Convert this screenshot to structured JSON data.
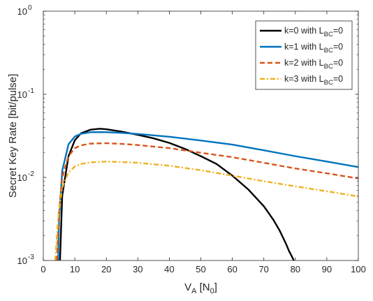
{
  "chart_data": {
    "type": "line",
    "xlabel": {
      "main": "V",
      "sub": "A",
      "rest": " [N",
      "sub2": "0",
      "end": "]"
    },
    "ylabel": "Secret Key Rate [bit/pulse]",
    "xlim": [
      0,
      100
    ],
    "ylim": [
      0.001,
      1
    ],
    "yscale": "log",
    "grid": false,
    "legend_position": "top-right",
    "x_ticks": [
      0,
      10,
      20,
      30,
      40,
      50,
      60,
      70,
      80,
      90,
      100
    ],
    "y_ticks": [
      {
        "value": 1,
        "base": "10",
        "exp": "0"
      },
      {
        "value": 0.1,
        "base": "10",
        "exp": "-1"
      },
      {
        "value": 0.01,
        "base": "10",
        "exp": "-2"
      },
      {
        "value": 0.001,
        "base": "10",
        "exp": "-3"
      }
    ],
    "series": [
      {
        "name": "k=0 with L_BC=0",
        "legend": {
          "pre": "k=0 with L",
          "sub": "BC",
          "post": "=0"
        },
        "color": "#000000",
        "dash": "solid",
        "x": [
          5.3,
          6,
          8,
          10,
          12,
          15,
          18,
          20,
          25,
          30,
          35,
          40,
          45,
          50,
          55,
          60,
          65,
          70,
          73,
          75,
          77,
          78,
          79,
          79.5
        ],
        "y": [
          0.001,
          0.006,
          0.018,
          0.028,
          0.034,
          0.0375,
          0.0385,
          0.038,
          0.0355,
          0.0325,
          0.0295,
          0.026,
          0.022,
          0.018,
          0.0145,
          0.0105,
          0.0072,
          0.0045,
          0.0031,
          0.0023,
          0.0016,
          0.0013,
          0.0011,
          0.001
        ]
      },
      {
        "name": "k=1 with L_BC=0",
        "legend": {
          "pre": "k=1 with L",
          "sub": "BC",
          "post": "=0"
        },
        "color": "#0072bd",
        "dash": "solid",
        "x": [
          4.7,
          5,
          6,
          8,
          10,
          12,
          15,
          20,
          25,
          30,
          40,
          50,
          60,
          70,
          80,
          90,
          100
        ],
        "y": [
          0.001,
          0.003,
          0.012,
          0.025,
          0.031,
          0.0335,
          0.035,
          0.035,
          0.0343,
          0.0333,
          0.0308,
          0.0278,
          0.0248,
          0.0212,
          0.018,
          0.0155,
          0.0133
        ]
      },
      {
        "name": "k=2 with L_BC=0",
        "legend": {
          "pre": "k=2 with L",
          "sub": "BC",
          "post": "=0"
        },
        "color": "#d95319",
        "dash": "dash",
        "x": [
          4.3,
          5,
          6,
          8,
          10,
          12,
          15,
          20,
          25,
          30,
          40,
          50,
          60,
          70,
          80,
          90,
          100
        ],
        "y": [
          0.001,
          0.004,
          0.01,
          0.018,
          0.0225,
          0.0243,
          0.0255,
          0.0258,
          0.0253,
          0.0245,
          0.0225,
          0.0198,
          0.0175,
          0.015,
          0.0128,
          0.0112,
          0.0097
        ]
      },
      {
        "name": "k=3 with L_BC=0",
        "legend": {
          "pre": "k=3 with L",
          "sub": "BC",
          "post": "=0"
        },
        "color": "#edb120",
        "dash": "dashdot",
        "x": [
          3.8,
          4.5,
          5,
          6,
          8,
          10,
          12,
          15,
          20,
          25,
          30,
          40,
          50,
          60,
          70,
          80,
          90,
          100
        ],
        "y": [
          0.001,
          0.0025,
          0.004,
          0.0075,
          0.0115,
          0.0135,
          0.0145,
          0.0152,
          0.0155,
          0.0153,
          0.015,
          0.0138,
          0.0122,
          0.0105,
          0.009,
          0.0078,
          0.0068,
          0.0059
        ]
      }
    ]
  }
}
